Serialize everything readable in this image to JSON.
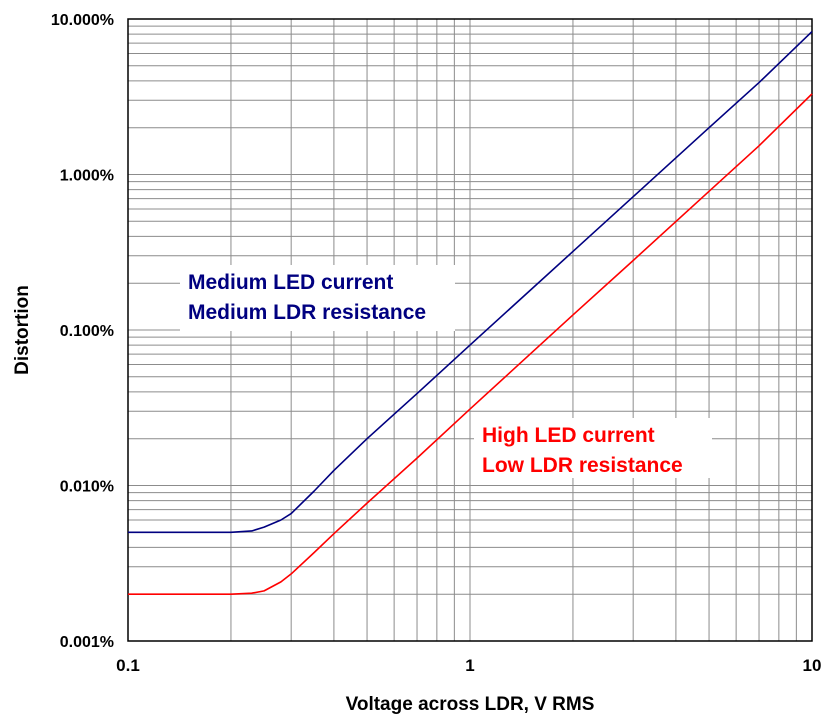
{
  "chart_data": {
    "type": "line",
    "xlabel": "Voltage across LDR, V RMS",
    "ylabel": "Distortion",
    "xscale": "log",
    "yscale": "log",
    "xlim": [
      0.1,
      10
    ],
    "ylim": [
      0.001,
      10
    ],
    "x_tick_labels": [
      "0.1",
      "1",
      "10"
    ],
    "x_tick_values": [
      0.1,
      1,
      10
    ],
    "y_tick_labels": [
      "0.001%",
      "0.010%",
      "0.100%",
      "1.000%",
      "10.000%"
    ],
    "y_tick_values": [
      0.001,
      0.01,
      0.1,
      1,
      10
    ],
    "grid": true,
    "series": [
      {
        "color": "#000080",
        "x": [
          0.1,
          0.15,
          0.2,
          0.23,
          0.25,
          0.28,
          0.3,
          0.35,
          0.4,
          0.5,
          0.7,
          1,
          2,
          3,
          5,
          7,
          10
        ],
        "y": [
          0.005,
          0.005,
          0.005,
          0.0051,
          0.0054,
          0.006,
          0.0066,
          0.0092,
          0.0125,
          0.02,
          0.039,
          0.08,
          0.32,
          0.72,
          2.0,
          3.9,
          8.3
        ]
      },
      {
        "color": "#ff0000",
        "x": [
          0.1,
          0.15,
          0.2,
          0.23,
          0.25,
          0.28,
          0.3,
          0.35,
          0.4,
          0.5,
          0.7,
          1,
          2,
          3,
          5,
          7,
          10
        ],
        "y": [
          0.002,
          0.002,
          0.002,
          0.00203,
          0.0021,
          0.0024,
          0.0027,
          0.0037,
          0.0049,
          0.0077,
          0.015,
          0.031,
          0.125,
          0.28,
          0.78,
          1.53,
          3.3
        ]
      }
    ],
    "annotations": [
      {
        "lines": [
          "Medium LED current",
          "Medium LDR resistance"
        ],
        "color": "#000080"
      },
      {
        "lines": [
          "High LED current",
          "Low LDR resistance"
        ],
        "color": "#ff0000"
      }
    ]
  }
}
